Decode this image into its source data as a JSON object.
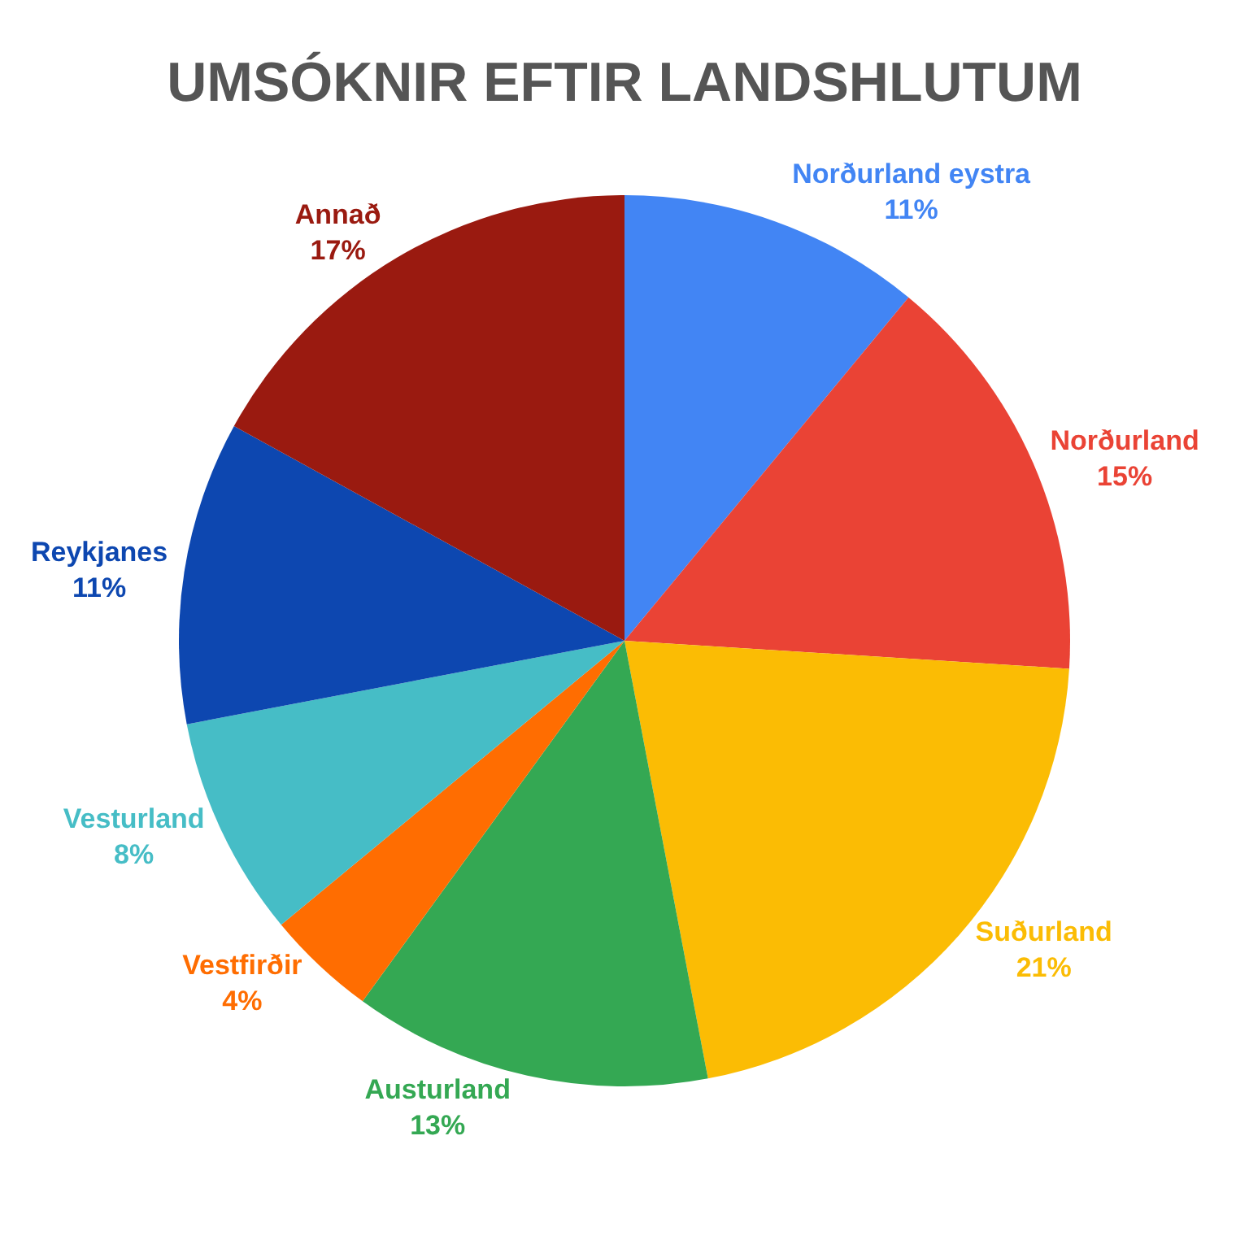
{
  "chart_data": {
    "type": "pie",
    "title": "UMSÓKNIR EFTIR LANDSHLUTUM",
    "categories": [
      "Norðurland eystra",
      "Norðurland",
      "Suðurland",
      "Austurland",
      "Vestfirðir",
      "Vesturland",
      "Reykjanes",
      "Annað"
    ],
    "values": [
      11,
      15,
      21,
      13,
      4,
      8,
      11,
      17
    ],
    "value_labels": [
      "11%",
      "15%",
      "21%",
      "13%",
      "4%",
      "8%",
      "11%",
      "17%"
    ],
    "colors": [
      "#4285f4",
      "#ea4335",
      "#fbbc04",
      "#34a853",
      "#ff6d01",
      "#46bdc6",
      "#0d47b0",
      "#9a1a10"
    ],
    "legend": false
  }
}
